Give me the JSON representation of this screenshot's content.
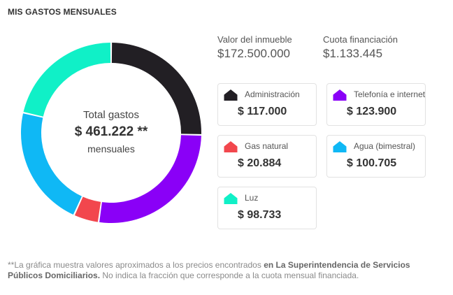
{
  "header": {
    "title": "MIS GASTOS MENSUALES"
  },
  "summary": {
    "center_label": "Total gastos",
    "center_value": "$ 461.222 **",
    "center_sub": "mensuales"
  },
  "info": {
    "property_label": "Valor del inmueble",
    "property_value": "$172.500.000",
    "quota_label": "Cuota financiación",
    "quota_value": "$1.133.445"
  },
  "expenses": [
    {
      "name": "Administración",
      "amount": "$ 117.000",
      "value": 117000,
      "color": "#221f24"
    },
    {
      "name": "Telefonía e internet",
      "amount": "$ 123.900",
      "value": 123900,
      "color": "#8a00f7"
    },
    {
      "name": "Gas natural",
      "amount": "$ 20.884",
      "value": 20884,
      "color": "#f2474d"
    },
    {
      "name": "Agua (bimestral)",
      "amount": "$ 100.705",
      "value": 100705,
      "color": "#0fb8f5"
    },
    {
      "name": "Luz",
      "amount": "$ 98.733",
      "value": 98733,
      "color": "#10f0c7"
    }
  ],
  "footnote": {
    "part1": "**La gráfica muestra valores aproximados a los precios encontrados ",
    "bold": "en La Superintendencia de Servicios Públicos Domiciliarios.",
    "part2": " No indica la fracción que corresponde a la cuota mensual financiada."
  }
}
